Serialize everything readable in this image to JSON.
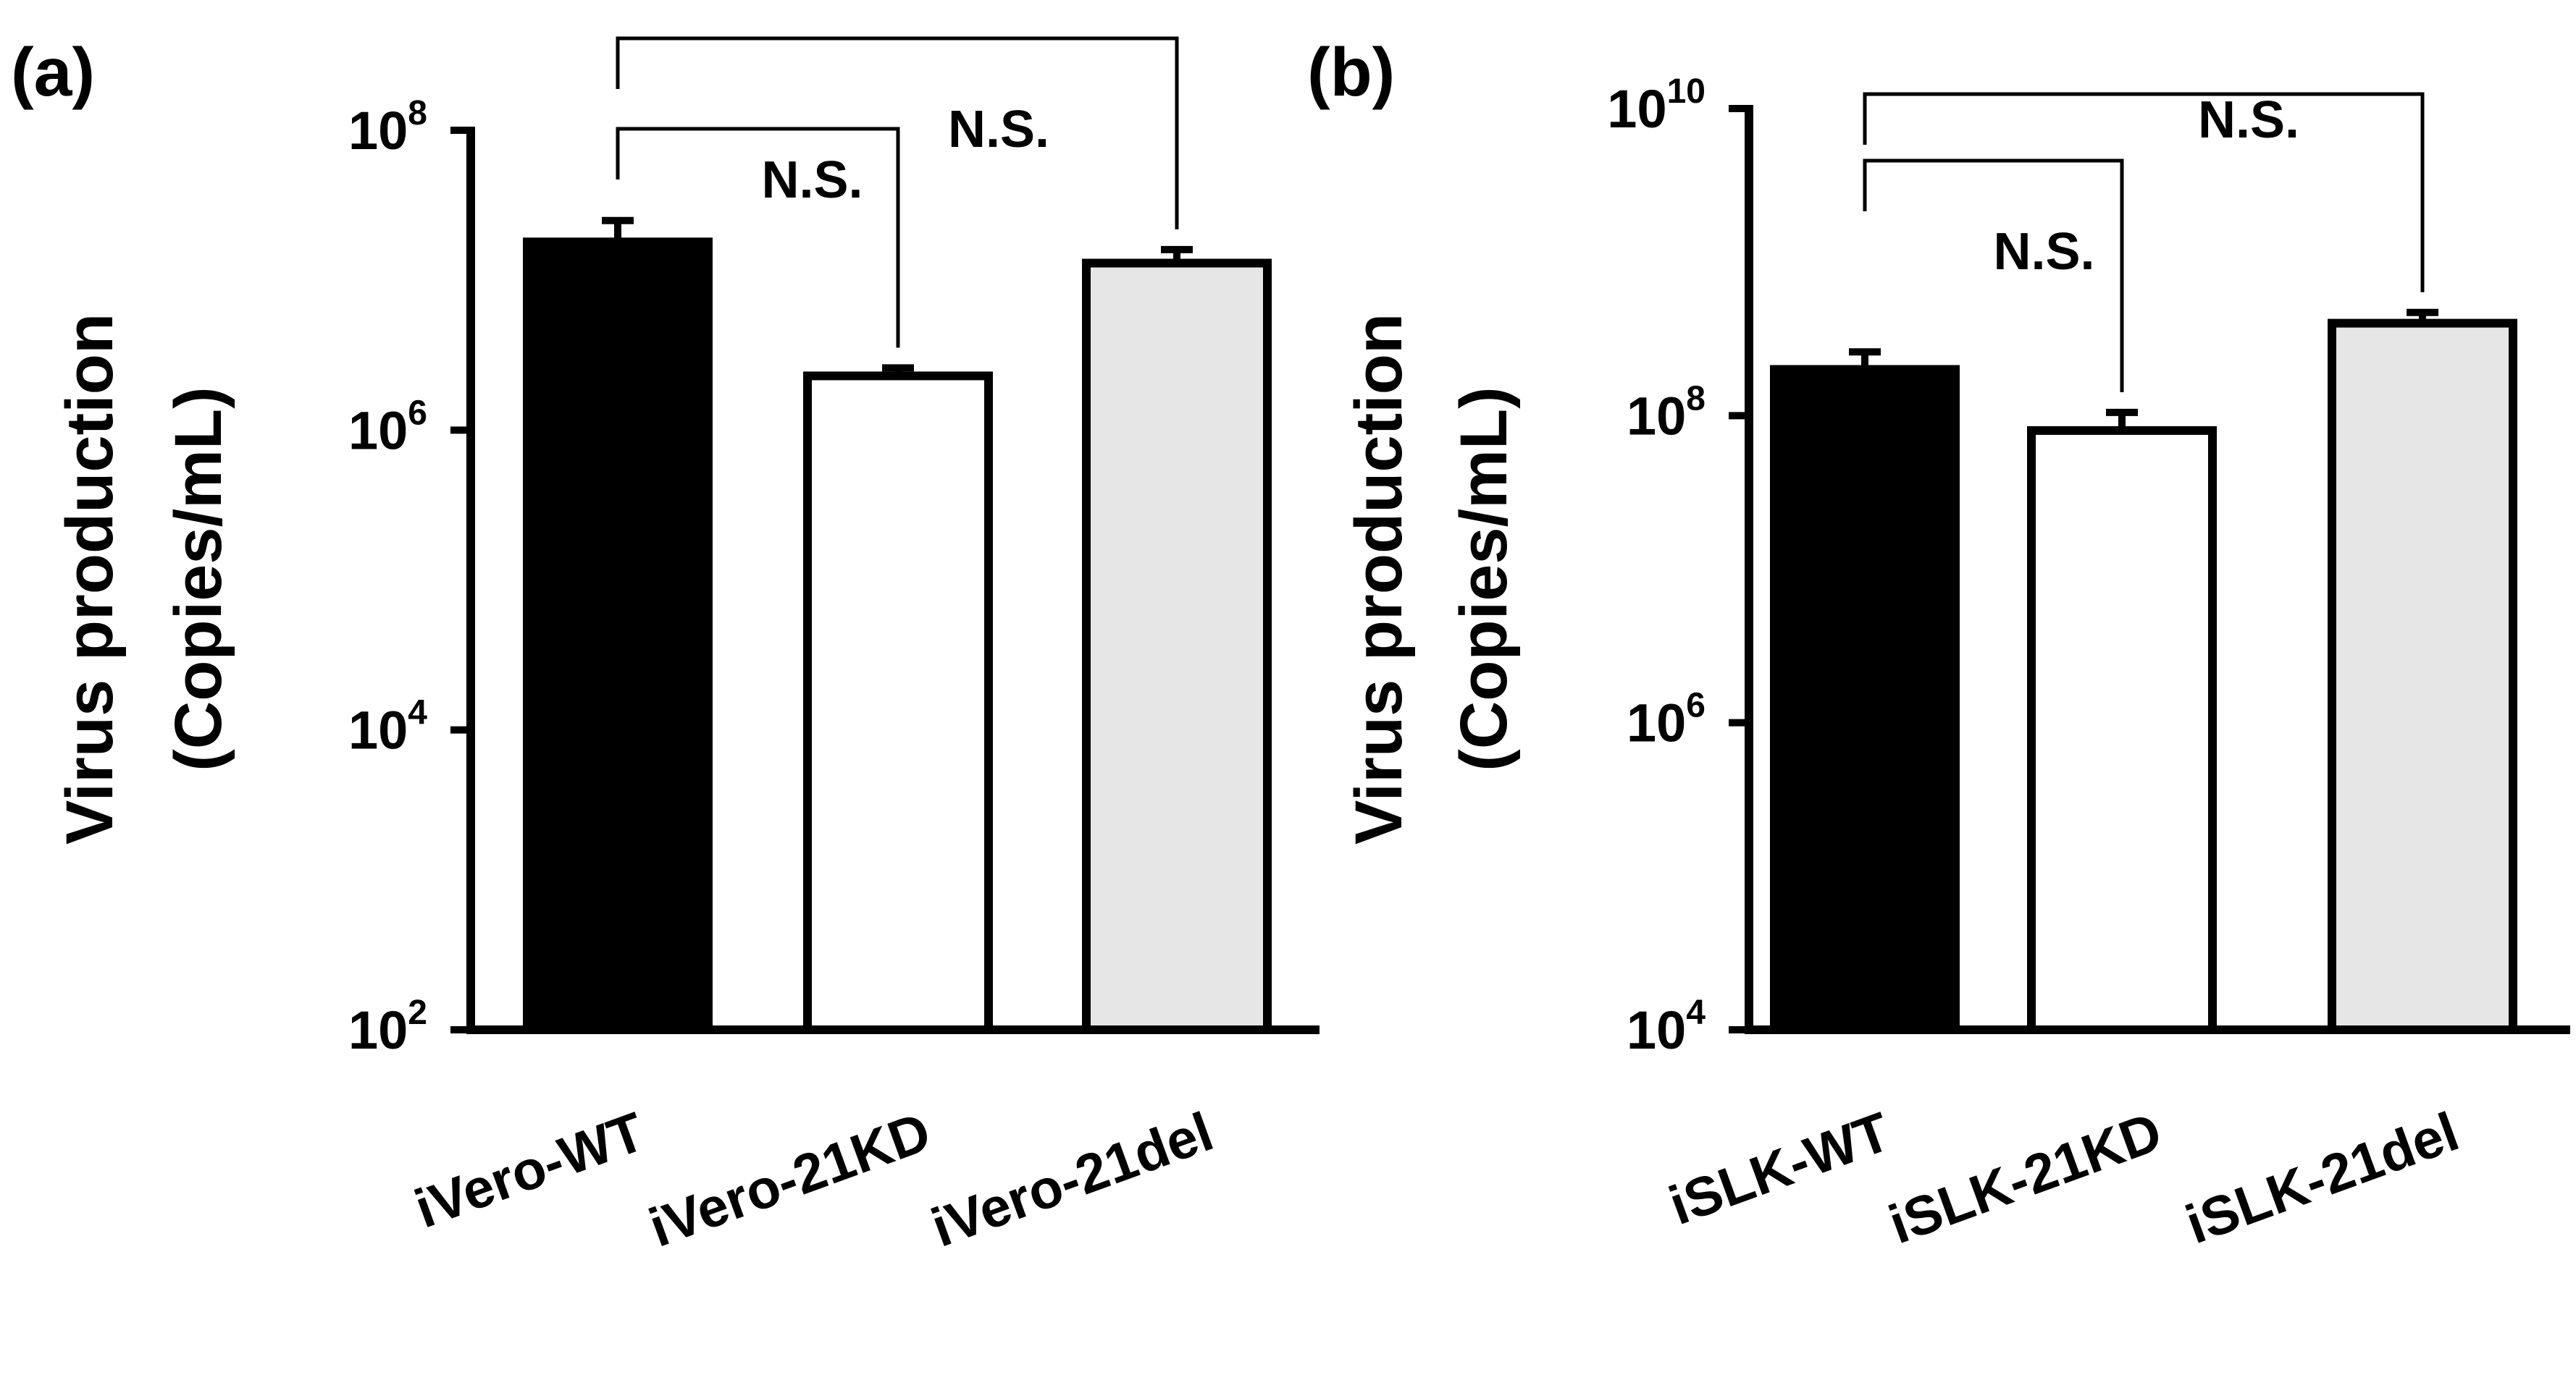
{
  "chart_data": [
    {
      "type": "bar",
      "panel_label": "(a)",
      "scale": "log",
      "categories": [
        "iVero-WT",
        "iVero-21KD",
        "iVero-21del"
      ],
      "values": [
        18000000,
        2300000,
        13000000
      ],
      "error_upper": [
        25000000,
        2600000,
        16000000
      ],
      "colors": [
        "#000000",
        "#ffffff",
        "#e6e6e6"
      ],
      "ylabel_line1": "Virus production",
      "ylabel_line2": "(Copies/mL)",
      "ylim": [
        100,
        100000000
      ],
      "yticks": [
        {
          "value": 100,
          "base": "10",
          "exp": "2"
        },
        {
          "value": 10000,
          "base": "10",
          "exp": "4"
        },
        {
          "value": 1000000,
          "base": "10",
          "exp": "6"
        },
        {
          "value": 100000000,
          "base": "10",
          "exp": "8"
        }
      ],
      "significance": [
        {
          "from": 0,
          "to": 1,
          "label": "N.S.",
          "level": 1
        },
        {
          "from": 0,
          "to": 2,
          "label": "N.S.",
          "level": 2
        }
      ]
    },
    {
      "type": "bar",
      "panel_label": "(b)",
      "scale": "log",
      "categories": [
        "iSLK-WT",
        "iSLK-21KD",
        "iSLK-21del"
      ],
      "values": [
        200000000,
        80000000,
        400000000
      ],
      "error_upper": [
        260000000,
        105000000,
        470000000
      ],
      "colors": [
        "#000000",
        "#ffffff",
        "#e6e6e6"
      ],
      "ylabel_line1": "Virus production",
      "ylabel_line2": "(Copies/mL)",
      "ylim": [
        10000,
        10000000000
      ],
      "yticks": [
        {
          "value": 10000,
          "base": "10",
          "exp": "4"
        },
        {
          "value": 1000000,
          "base": "10",
          "exp": "6"
        },
        {
          "value": 100000000,
          "base": "10",
          "exp": "8"
        },
        {
          "value": 10000000000,
          "base": "10",
          "exp": "10"
        }
      ],
      "significance": [
        {
          "from": 0,
          "to": 1,
          "label": "N.S.",
          "level": 1
        },
        {
          "from": 0,
          "to": 2,
          "label": "N.S.",
          "level": 2
        }
      ]
    }
  ]
}
